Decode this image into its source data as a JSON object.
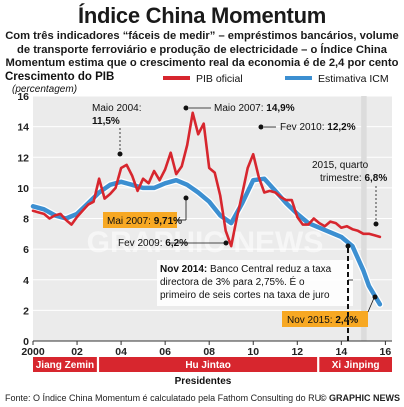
{
  "title": "Índice China Momentum",
  "subtitle": "Com três indicadores “fáceis de medir” – empréstimos bancários, volume de transporte ferroviário e produção de electricidade – o Índice China Momentum estima que o crescimento real da economia é de 2,4 por cento",
  "colors": {
    "official": "#d7262e",
    "icm": "#3c8fd1",
    "band": "#ebebeb",
    "president": "#d7262e",
    "highlight": "#f7a823"
  },
  "chart_data": {
    "type": "line",
    "ylabel": "Crescimento do PIB",
    "yunit": "(percentagem)",
    "xlabel": "Presidentes",
    "xlim": [
      2000,
      2016.3
    ],
    "ylim": [
      0,
      16
    ],
    "yticks": [
      0,
      2,
      4,
      6,
      8,
      10,
      12,
      14,
      16
    ],
    "xticks": [
      {
        "v": 2000,
        "label": "2000"
      },
      {
        "v": 2002,
        "label": "02"
      },
      {
        "v": 2004,
        "label": "04"
      },
      {
        "v": 2006,
        "label": "06"
      },
      {
        "v": 2008,
        "label": "08"
      },
      {
        "v": 2010,
        "label": "10"
      },
      {
        "v": 2012,
        "label": "12"
      },
      {
        "v": 2014,
        "label": "14"
      },
      {
        "v": 2016,
        "label": "16"
      }
    ],
    "legend": [
      {
        "name": "PIB oficial",
        "series": "official"
      },
      {
        "name": "Estimativa ICM",
        "series": "icm"
      }
    ],
    "series": [
      {
        "name": "PIB oficial",
        "key": "official",
        "x": [
          2000.0,
          2000.25,
          2000.5,
          2000.75,
          2001.0,
          2001.25,
          2001.5,
          2001.75,
          2002.0,
          2002.25,
          2002.5,
          2002.75,
          2003.0,
          2003.25,
          2003.5,
          2003.75,
          2004.0,
          2004.25,
          2004.5,
          2004.75,
          2005.0,
          2005.25,
          2005.5,
          2005.75,
          2006.0,
          2006.25,
          2006.5,
          2006.75,
          2007.0,
          2007.25,
          2007.5,
          2007.75,
          2008.0,
          2008.25,
          2008.5,
          2008.75,
          2009.0,
          2009.25,
          2009.5,
          2009.75,
          2010.0,
          2010.25,
          2010.5,
          2010.75,
          2011.0,
          2011.25,
          2011.5,
          2011.75,
          2012.0,
          2012.25,
          2012.5,
          2012.75,
          2013.0,
          2013.25,
          2013.5,
          2013.75,
          2014.0,
          2014.25,
          2014.5,
          2014.75,
          2015.0,
          2015.25,
          2015.5,
          2015.75
        ],
        "values": [
          8.5,
          8.4,
          8.3,
          8.0,
          8.2,
          8.3,
          7.9,
          7.6,
          8.1,
          8.5,
          8.9,
          9.1,
          10.6,
          9.3,
          9.6,
          10.0,
          11.3,
          11.5,
          10.8,
          9.8,
          10.6,
          10.3,
          11.1,
          10.5,
          11.2,
          12.3,
          10.9,
          11.4,
          12.8,
          14.9,
          13.5,
          14.2,
          11.3,
          11.0,
          9.5,
          7.2,
          6.2,
          8.0,
          9.6,
          11.3,
          12.2,
          10.7,
          9.7,
          9.8,
          9.7,
          9.4,
          9.2,
          9.2,
          8.1,
          7.6,
          7.6,
          8.0,
          7.7,
          7.5,
          7.8,
          7.7,
          7.4,
          7.5,
          7.3,
          7.2,
          7.0,
          7.0,
          6.9,
          6.8
        ]
      },
      {
        "name": "Estimativa ICM",
        "key": "icm",
        "x": [
          2000.0,
          2000.5,
          2001.0,
          2001.5,
          2002.0,
          2002.5,
          2003.0,
          2003.5,
          2004.0,
          2004.5,
          2005.0,
          2005.5,
          2006.0,
          2006.5,
          2007.0,
          2007.5,
          2008.0,
          2008.5,
          2009.0,
          2009.5,
          2010.0,
          2010.5,
          2011.0,
          2011.5,
          2012.0,
          2012.5,
          2013.0,
          2013.5,
          2014.0,
          2014.5,
          2015.0,
          2015.25,
          2015.5,
          2015.75
        ],
        "values": [
          8.8,
          8.6,
          8.2,
          8.0,
          8.3,
          9.0,
          9.7,
          10.2,
          10.4,
          10.2,
          10.0,
          10.0,
          10.3,
          10.5,
          10.2,
          9.7,
          9.1,
          8.2,
          7.7,
          9.0,
          10.5,
          10.6,
          9.8,
          9.0,
          8.3,
          7.7,
          7.4,
          7.1,
          6.8,
          6.2,
          4.6,
          3.6,
          3.0,
          2.4
        ]
      }
    ],
    "highlight_range": [
      2014.9,
      2015.15
    ],
    "annotations": [
      {
        "text": "Maio 2004:",
        "bold": "11,5%"
      },
      {
        "text": "Maio 2007:",
        "bold": "14,9%"
      },
      {
        "text": "Fev 2010:",
        "bold": "12,2%"
      },
      {
        "text": "Mai 2007:",
        "bold": "9,71%"
      },
      {
        "text": "Fev 2009:",
        "bold": "6,2%"
      },
      {
        "text": "2015, quarto",
        "text2": "trimestre:",
        "bold": "6,8%"
      },
      {
        "text": "Nov 2015:",
        "bold": "2,4%"
      }
    ],
    "callout": {
      "bold": "Nov 2014:",
      "lines": [
        "Banco Central reduz a taxa",
        "directora de 3% para 2,75%. É o",
        "primeiro de seis cortes na taxa de juro"
      ]
    }
  },
  "presidents": [
    {
      "name": "Jiang Zemin",
      "from": 2000,
      "to": 2002.9
    },
    {
      "name": "Hu Jintao",
      "from": 2003.0,
      "to": 2012.9
    },
    {
      "name": "Xi Jinping",
      "from": 2013.0,
      "to": 2016.3
    }
  ],
  "watermark": "GRAPHIC NEWS",
  "footer": {
    "source": "Fonte: O Índice China Momentum é calculatado pela Fathom Consulting do RU",
    "credit": "© GRAPHIC NEWS"
  }
}
